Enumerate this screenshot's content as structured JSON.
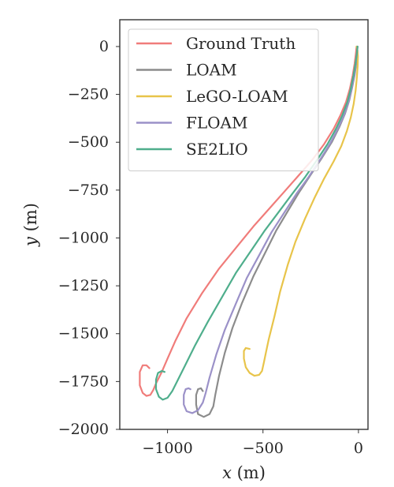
{
  "chart_data": {
    "type": "line",
    "title": "",
    "xlabel_var": "x",
    "xlabel_unit": " (m)",
    "ylabel_var": "y",
    "ylabel_unit": " (m)",
    "xlim": [
      -1250,
      50
    ],
    "ylim": [
      -2000,
      140
    ],
    "x_ticks": [
      {
        "value": -1000,
        "label": "−1000"
      },
      {
        "value": -500,
        "label": "−500"
      },
      {
        "value": 0,
        "label": "0"
      }
    ],
    "y_ticks": [
      {
        "value": 0,
        "label": "0"
      },
      {
        "value": -250,
        "label": "−250"
      },
      {
        "value": -500,
        "label": "−500"
      },
      {
        "value": -750,
        "label": "−750"
      },
      {
        "value": -1000,
        "label": "−1000"
      },
      {
        "value": -1250,
        "label": "−1250"
      },
      {
        "value": -1500,
        "label": "−1500"
      },
      {
        "value": -1750,
        "label": "−1750"
      },
      {
        "value": -2000,
        "label": "−2000"
      }
    ],
    "grid": false,
    "legend_position": "top-left",
    "series": [
      {
        "name": "Ground Truth",
        "color": "#f07c7a",
        "x": [
          -10,
          -14,
          -20,
          -30,
          -45,
          -65,
          -95,
          -130,
          -180,
          -240,
          -310,
          -390,
          -470,
          -550,
          -640,
          -730,
          -820,
          -900,
          -960,
          -1000,
          -1030,
          -1060,
          -1075,
          -1090,
          -1110,
          -1130,
          -1145,
          -1145,
          -1130,
          -1110,
          -1095
        ],
        "y": [
          0,
          -40,
          -90,
          -150,
          -220,
          -290,
          -360,
          -430,
          -510,
          -590,
          -670,
          -760,
          -850,
          -940,
          -1050,
          -1160,
          -1290,
          -1420,
          -1540,
          -1630,
          -1700,
          -1760,
          -1795,
          -1820,
          -1825,
          -1810,
          -1770,
          -1700,
          -1665,
          -1665,
          -1680
        ]
      },
      {
        "name": "LOAM",
        "color": "#8c8c8c",
        "x": [
          -5,
          -8,
          -12,
          -20,
          -32,
          -48,
          -70,
          -100,
          -140,
          -190,
          -250,
          -310,
          -370,
          -430,
          -490,
          -550,
          -610,
          -660,
          -700,
          -730,
          -750,
          -760,
          -780,
          -810,
          -840,
          -850,
          -850,
          -840,
          -825,
          -815
        ],
        "y": [
          0,
          -40,
          -90,
          -150,
          -210,
          -280,
          -350,
          -420,
          -500,
          -580,
          -670,
          -760,
          -860,
          -960,
          -1080,
          -1200,
          -1340,
          -1470,
          -1600,
          -1720,
          -1820,
          -1880,
          -1920,
          -1935,
          -1920,
          -1870,
          -1820,
          -1790,
          -1785,
          -1800
        ]
      },
      {
        "name": "LeGO-LOAM",
        "color": "#e8c44a",
        "x": [
          -10,
          -5,
          -3,
          -4,
          -8,
          -15,
          -25,
          -40,
          -60,
          -90,
          -130,
          -180,
          -230,
          -280,
          -330,
          -370,
          -410,
          -440,
          -470,
          -485,
          -495,
          -505,
          -520,
          -545,
          -570,
          -590,
          -600,
          -600,
          -590,
          -570
        ],
        "y": [
          0,
          -20,
          -50,
          -100,
          -160,
          -230,
          -300,
          -370,
          -440,
          -520,
          -600,
          -690,
          -790,
          -900,
          -1020,
          -1140,
          -1280,
          -1410,
          -1530,
          -1600,
          -1650,
          -1695,
          -1715,
          -1720,
          -1705,
          -1675,
          -1630,
          -1590,
          -1575,
          -1580
        ]
      },
      {
        "name": "FLOAM",
        "color": "#9b91c8",
        "x": [
          -5,
          -8,
          -14,
          -22,
          -35,
          -52,
          -76,
          -108,
          -150,
          -200,
          -260,
          -325,
          -390,
          -455,
          -520,
          -585,
          -645,
          -700,
          -745,
          -780,
          -800,
          -815,
          -840,
          -870,
          -900,
          -915,
          -915,
          -905,
          -890,
          -880
        ],
        "y": [
          0,
          -40,
          -90,
          -150,
          -220,
          -290,
          -360,
          -430,
          -510,
          -590,
          -680,
          -770,
          -870,
          -970,
          -1090,
          -1210,
          -1350,
          -1480,
          -1610,
          -1730,
          -1810,
          -1860,
          -1900,
          -1915,
          -1905,
          -1870,
          -1820,
          -1790,
          -1785,
          -1790
        ]
      },
      {
        "name": "SE2LIO",
        "color": "#4fae8c",
        "x": [
          -5,
          -9,
          -16,
          -26,
          -40,
          -58,
          -85,
          -118,
          -162,
          -215,
          -278,
          -347,
          -418,
          -490,
          -565,
          -640,
          -715,
          -790,
          -855,
          -910,
          -950,
          -975,
          -1000,
          -1025,
          -1045,
          -1060,
          -1060,
          -1050,
          -1030,
          -1015
        ],
        "y": [
          0,
          -40,
          -90,
          -150,
          -220,
          -290,
          -360,
          -430,
          -510,
          -590,
          -680,
          -770,
          -865,
          -960,
          -1070,
          -1180,
          -1310,
          -1440,
          -1560,
          -1670,
          -1750,
          -1800,
          -1835,
          -1845,
          -1830,
          -1790,
          -1740,
          -1705,
          -1695,
          -1700
        ]
      }
    ]
  }
}
